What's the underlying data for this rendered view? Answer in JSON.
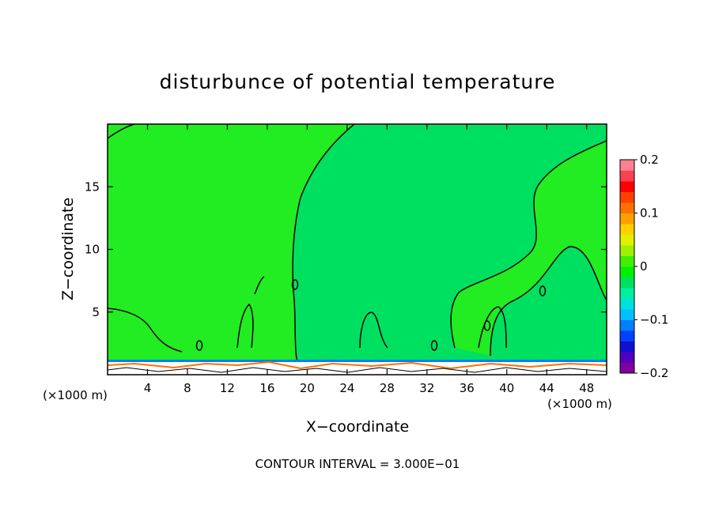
{
  "chart_data": {
    "type": "heatmap",
    "title": "disturbunce of potential temperature",
    "xlabel": "X−coordinate",
    "ylabel": "Z−coordinate",
    "x_unit_left": "(×1000 m)",
    "x_unit_right": "(×1000 m)",
    "footer": "CONTOUR INTERVAL = 3.000E−01",
    "xlim": [
      0,
      50
    ],
    "ylim": [
      0,
      20
    ],
    "x_ticks": [
      4,
      8,
      12,
      16,
      20,
      24,
      28,
      32,
      36,
      40,
      44,
      48
    ],
    "y_ticks": [
      5,
      10,
      15
    ],
    "background_value": 0,
    "colorbar": {
      "min": -0.2,
      "max": 0.2,
      "tick_values": [
        0.2,
        0.1,
        0,
        -0.1,
        -0.2
      ],
      "tick_labels": [
        "0.2",
        "0.1",
        "0",
        "−0.1",
        "−0.2"
      ],
      "colors": [
        "#8000a0",
        "#5000c0",
        "#1010d0",
        "#0040ff",
        "#0080ff",
        "#00c0ff",
        "#00e0e0",
        "#00f0a0",
        "#00e060",
        "#00f000",
        "#40f000",
        "#a0f000",
        "#e0f000",
        "#ffd000",
        "#ffa000",
        "#ff7000",
        "#ff4000",
        "#ff0000",
        "#ff4050",
        "#ff8090"
      ]
    },
    "regions": [
      {
        "value": 0.005,
        "color": "#22ec22"
      },
      {
        "value": -0.005,
        "color": "#00e060"
      }
    ]
  }
}
